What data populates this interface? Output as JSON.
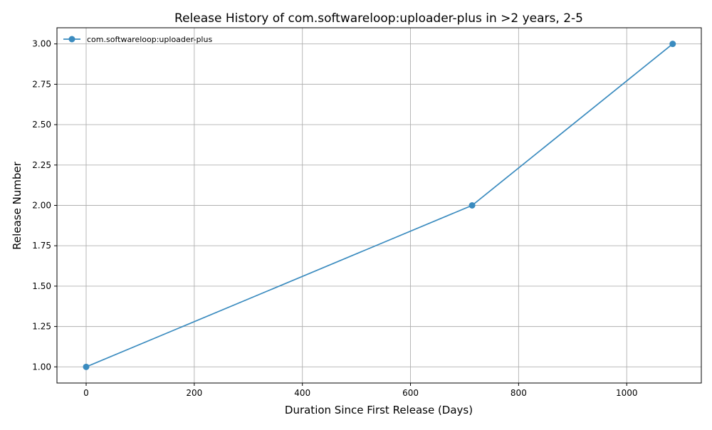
{
  "chart_data": {
    "type": "line",
    "title": "Release History of com.softwareloop:uploader-plus in >2 years, 2-5",
    "xlabel": "Duration Since First Release (Days)",
    "ylabel": "Release Number",
    "xlim": [
      -54,
      1138
    ],
    "ylim": [
      0.9,
      3.1
    ],
    "x_ticks": [
      0,
      200,
      400,
      600,
      800,
      1000
    ],
    "x_tick_labels": [
      "0",
      "200",
      "400",
      "600",
      "800",
      "1000"
    ],
    "y_ticks": [
      1.0,
      1.25,
      1.5,
      1.75,
      2.0,
      2.25,
      2.5,
      2.75,
      3.0
    ],
    "y_tick_labels": [
      "1.00",
      "1.25",
      "1.50",
      "1.75",
      "2.00",
      "2.25",
      "2.50",
      "2.75",
      "3.00"
    ],
    "grid": true,
    "legend_position": "top-left",
    "series": [
      {
        "name": "com.softwareloop:uploader-plus",
        "color": "#3a8bbf",
        "marker": "circle",
        "x": [
          0,
          714,
          1085
        ],
        "y": [
          1,
          2,
          3
        ]
      }
    ]
  }
}
